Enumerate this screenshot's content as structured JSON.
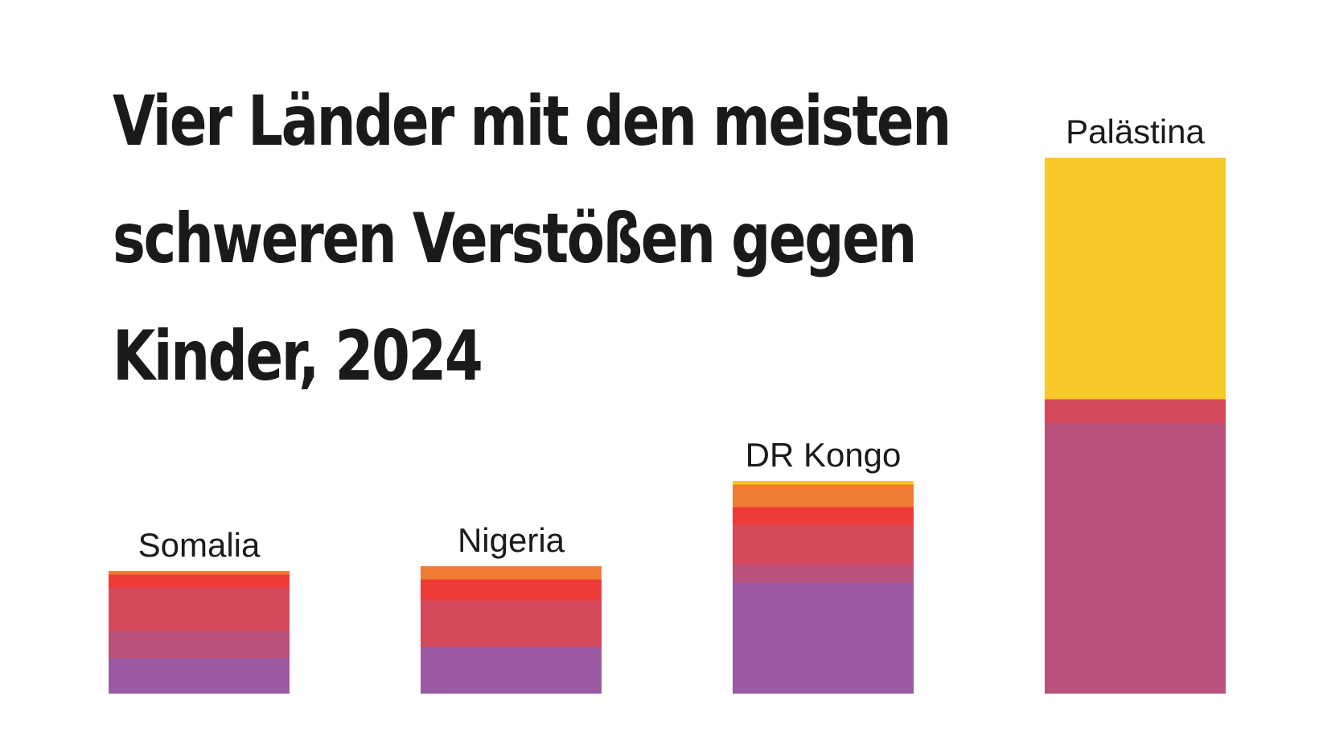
{
  "chart_data": {
    "type": "bar",
    "stacked": true,
    "title_lines": [
      "Vier Länder mit den meisten",
      "schweren Verstößen gegen",
      "Kinder, 2024"
    ],
    "title": "Vier Länder mit den meisten schweren Verstößen gegen Kinder, 2024",
    "xlabel": "",
    "ylabel": "",
    "axes_visible": false,
    "grid": false,
    "legend": "none",
    "categories": [
      "Somalia",
      "Nigeria",
      "DR Kongo",
      "Palästina"
    ],
    "series": [
      {
        "color": "#9b59a4",
        "values": [
          2.2,
          2.9,
          6.9,
          0
        ]
      },
      {
        "color": "#b8527c",
        "values": [
          1.7,
          0,
          1.1,
          16.8
        ]
      },
      {
        "color": "#d4485b",
        "values": [
          2.7,
          2.9,
          2.5,
          1.5
        ]
      },
      {
        "color": "#ee3b38",
        "values": [
          0.8,
          1.3,
          1.1,
          0
        ]
      },
      {
        "color": "#f07b34",
        "values": [
          0.2,
          0.8,
          1.4,
          0
        ]
      },
      {
        "color": "#f7c928",
        "values": [
          0,
          0,
          0.2,
          15.0
        ]
      }
    ]
  }
}
